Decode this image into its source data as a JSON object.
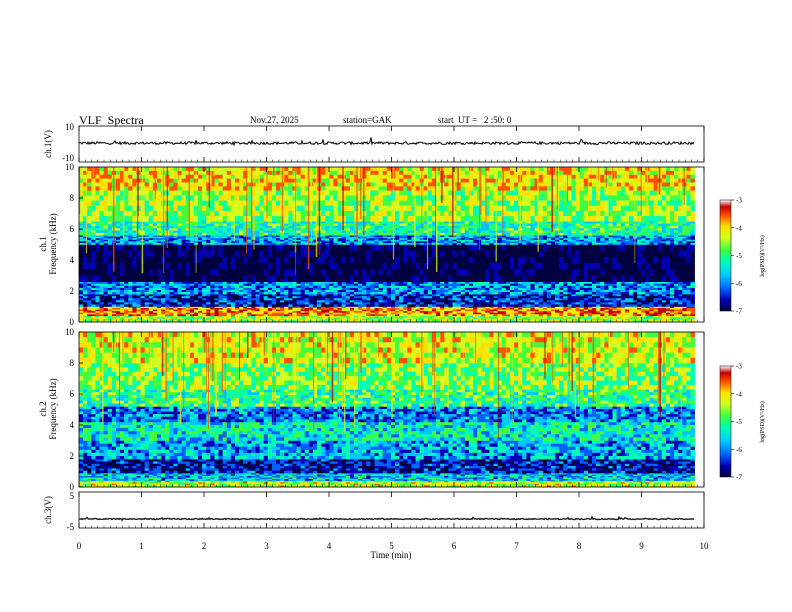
{
  "header": {
    "title": "VLF  Spectra",
    "date": "Nov.27, 2025",
    "station": "station=GAK",
    "start": "start  UT =   2 :50: 0"
  },
  "colors": {
    "colormap": [
      "#000040",
      "#0000b0",
      "#0060ff",
      "#00c8ff",
      "#00ffb0",
      "#40ff40",
      "#d0ff20",
      "#ffe000",
      "#ff5000",
      "#c00000",
      "#ffffff"
    ],
    "trace": "#000000"
  },
  "chart_data": [
    {
      "type": "line",
      "panel": "ch1-waveform",
      "ylabel": "ch.1(V)",
      "ylim": [
        -10,
        10
      ],
      "yticks": [
        10,
        -10
      ],
      "x_range_min": [
        0,
        9.85
      ],
      "baseline_v": 0.5,
      "noise_amplitude_v": 1.5
    },
    {
      "type": "heatmap",
      "panel": "ch1-spectrogram",
      "ylabel": "ch.1\nFrequency  (kHz)",
      "ylabel_line1": "ch.1",
      "ylabel_line2": "Frequency  (kHz)",
      "ylim": [
        0,
        10
      ],
      "yticks": [
        0,
        2,
        4,
        6,
        8,
        10
      ],
      "x_range_min": [
        0,
        9.85
      ],
      "colorbar": {
        "label": "log(PSD)(V²/Hz)",
        "range": [
          -7,
          -3
        ],
        "ticks": [
          "-3",
          "-4",
          "-5",
          "-6",
          "-7"
        ]
      },
      "bands_khz": [
        {
          "from": 0,
          "to": 0.4,
          "level": -4.5
        },
        {
          "from": 0.4,
          "to": 1.0,
          "level": -3.8
        },
        {
          "from": 1.0,
          "to": 1.8,
          "level": -6.3
        },
        {
          "from": 1.8,
          "to": 2.6,
          "level": -5.8
        },
        {
          "from": 2.6,
          "to": 5.0,
          "level": -6.9
        },
        {
          "from": 5.0,
          "to": 5.6,
          "level": -5.8
        },
        {
          "from": 5.6,
          "to": 6.5,
          "level": -5.1
        },
        {
          "from": 6.5,
          "to": 8.5,
          "level": -4.6
        },
        {
          "from": 8.5,
          "to": 10,
          "level": -4.1
        }
      ]
    },
    {
      "type": "heatmap",
      "panel": "ch2-spectrogram",
      "ylabel_line1": "ch.2",
      "ylabel_line2": "Frequency  (kHz)",
      "ylim": [
        0,
        10
      ],
      "yticks": [
        0,
        2,
        4,
        6,
        8,
        10
      ],
      "x_range_min": [
        0,
        9.85
      ],
      "colorbar": {
        "label": "log(PSD)(V²/Hz)",
        "range": [
          -7,
          -3
        ],
        "ticks": [
          "-3",
          "-4",
          "-5",
          "-6",
          "-7"
        ]
      },
      "bands_khz": [
        {
          "from": 0,
          "to": 0.4,
          "level": -4.4
        },
        {
          "from": 0.4,
          "to": 0.9,
          "level": -5.6
        },
        {
          "from": 0.9,
          "to": 1.8,
          "level": -6.4
        },
        {
          "from": 1.8,
          "to": 3.0,
          "level": -5.7
        },
        {
          "from": 3.0,
          "to": 4.2,
          "level": -5.3
        },
        {
          "from": 4.2,
          "to": 5.2,
          "level": -5.9
        },
        {
          "from": 5.2,
          "to": 6.3,
          "level": -5.0
        },
        {
          "from": 6.3,
          "to": 8.0,
          "level": -4.7
        },
        {
          "from": 8.0,
          "to": 10,
          "level": -4.3
        }
      ]
    },
    {
      "type": "line",
      "panel": "ch3-waveform",
      "ylabel": "ch.3(V)",
      "ylim": [
        -5,
        5
      ],
      "yticks": [
        5,
        -5
      ],
      "x_range_min": [
        0,
        9.85
      ],
      "baseline_v": -2.5,
      "noise_amplitude_v": 0.3
    }
  ],
  "xaxis": {
    "label": "Time  (min)",
    "ticks": [
      "0",
      "1",
      "2",
      "3",
      "4",
      "5",
      "6",
      "7",
      "8",
      "9",
      "10"
    ],
    "xlim": [
      0,
      10
    ]
  }
}
